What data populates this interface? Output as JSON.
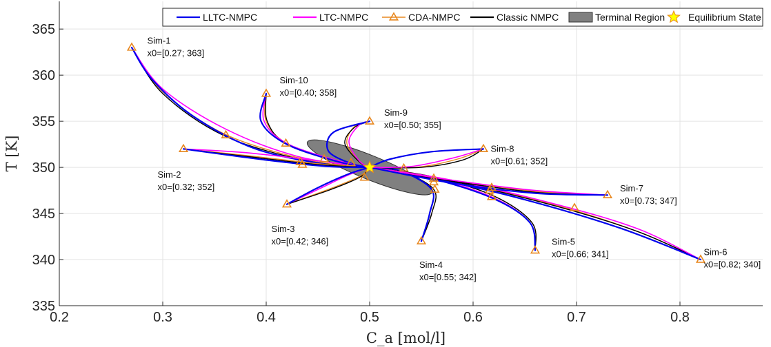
{
  "chart_data": {
    "type": "line",
    "xlabel": "C_a [mol/l]",
    "ylabel": "T [K]",
    "xlim": [
      0.2,
      0.88
    ],
    "ylim": [
      335,
      368
    ],
    "xticks": [
      "0.2",
      "0.3",
      "0.4",
      "0.5",
      "0.6",
      "0.7",
      "0.8"
    ],
    "yticks": [
      "335",
      "340",
      "345",
      "350",
      "355",
      "360",
      "365"
    ],
    "grid": true,
    "legend_placement": "top",
    "equilibrium": [
      0.5,
      350
    ],
    "terminal_region": {
      "center": [
        0.5,
        350
      ],
      "semi_axes": [
        0.065,
        1.3
      ],
      "angle_deg": -22
    },
    "legend": [
      {
        "label": "LLTC-NMPC",
        "kind": "line",
        "color": "#0000ee"
      },
      {
        "label": "LTC-NMPC",
        "kind": "line",
        "color": "#ff00ff"
      },
      {
        "label": "CDA-NMPC",
        "kind": "triangle-line",
        "color": "#e8871e"
      },
      {
        "label": "Classic NMPC",
        "kind": "line",
        "color": "#000000"
      },
      {
        "label": "Terminal Region",
        "kind": "patch",
        "color": "#808080"
      },
      {
        "label": "Equilibrium State",
        "kind": "star",
        "color": "#ffff00"
      }
    ],
    "series_colors": {
      "lltc": "#0000ee",
      "ltc": "#ff00ff",
      "cda": "#e8871e",
      "classic": "#000000"
    },
    "simulations": [
      {
        "name": "Sim-1",
        "label": "x0=[0.27; 363]",
        "x0": [
          0.27,
          363
        ],
        "label_pos": [
          0.285,
          363.4
        ],
        "lltc": [
          [
            0.27,
            363
          ],
          [
            0.29,
            359.5
          ],
          [
            0.33,
            355.5
          ],
          [
            0.39,
            352
          ],
          [
            0.46,
            350.3
          ],
          [
            0.5,
            350
          ]
        ],
        "ltc": [
          [
            0.27,
            363
          ],
          [
            0.3,
            358.5
          ],
          [
            0.36,
            354.2
          ],
          [
            0.43,
            351.2
          ],
          [
            0.5,
            350
          ]
        ],
        "cda": [
          [
            0.27,
            363
          ],
          [
            0.3,
            358.2
          ],
          [
            0.36,
            353.6
          ],
          [
            0.44,
            350.8
          ],
          [
            0.5,
            350
          ]
        ],
        "classic": [
          [
            0.27,
            363
          ],
          [
            0.3,
            358
          ],
          [
            0.36,
            353.4
          ],
          [
            0.44,
            350.7
          ],
          [
            0.5,
            350
          ]
        ],
        "cda_markers": [
          [
            0.27,
            363
          ],
          [
            0.361,
            353.5
          ],
          [
            0.433,
            350.6
          ]
        ]
      },
      {
        "name": "Sim-2",
        "label": "x0=[0.32; 352]",
        "x0": [
          0.32,
          352
        ],
        "label_pos": [
          0.295,
          348.9
        ],
        "lltc": [
          [
            0.32,
            352
          ],
          [
            0.4,
            350.8
          ],
          [
            0.46,
            350.1
          ],
          [
            0.5,
            350
          ]
        ],
        "ltc": [
          [
            0.32,
            352
          ],
          [
            0.38,
            351.6
          ],
          [
            0.45,
            350.7
          ],
          [
            0.5,
            350
          ]
        ],
        "cda": [
          [
            0.32,
            352
          ],
          [
            0.38,
            351.3
          ],
          [
            0.45,
            350.4
          ],
          [
            0.5,
            350
          ]
        ],
        "classic": [
          [
            0.32,
            352
          ],
          [
            0.38,
            351.2
          ],
          [
            0.45,
            350.3
          ],
          [
            0.5,
            350
          ]
        ],
        "cda_markers": [
          [
            0.32,
            352
          ],
          [
            0.435,
            350.3
          ]
        ]
      },
      {
        "name": "Sim-3",
        "label": "x0=[0.42; 346]",
        "x0": [
          0.42,
          346
        ],
        "label_pos": [
          0.405,
          343
        ],
        "lltc": [
          [
            0.42,
            346
          ],
          [
            0.45,
            347.8
          ],
          [
            0.48,
            349.3
          ],
          [
            0.5,
            350
          ]
        ],
        "ltc": [
          [
            0.42,
            346
          ],
          [
            0.45,
            347.6
          ],
          [
            0.48,
            349.2
          ],
          [
            0.5,
            350
          ]
        ],
        "cda": [
          [
            0.42,
            346
          ],
          [
            0.46,
            347.6
          ],
          [
            0.49,
            349
          ],
          [
            0.5,
            350
          ]
        ],
        "classic": [
          [
            0.42,
            346
          ],
          [
            0.46,
            347.5
          ],
          [
            0.49,
            348.9
          ],
          [
            0.5,
            350
          ]
        ],
        "cda_markers": [
          [
            0.42,
            346
          ],
          [
            0.495,
            348.9
          ]
        ]
      },
      {
        "name": "Sim-4",
        "label": "x0=[0.55; 342]",
        "x0": [
          0.55,
          342
        ],
        "label_pos": [
          0.548,
          339.1
        ],
        "lltc": [
          [
            0.55,
            342
          ],
          [
            0.558,
            345
          ],
          [
            0.56,
            347.6
          ],
          [
            0.53,
            349.6
          ],
          [
            0.5,
            350
          ]
        ],
        "ltc": [
          [
            0.55,
            342
          ],
          [
            0.558,
            345
          ],
          [
            0.56,
            347.6
          ],
          [
            0.53,
            349.6
          ],
          [
            0.5,
            350
          ]
        ],
        "cda": [
          [
            0.55,
            342
          ],
          [
            0.56,
            345
          ],
          [
            0.562,
            347.6
          ],
          [
            0.53,
            349.6
          ],
          [
            0.5,
            350
          ]
        ],
        "classic": [
          [
            0.55,
            342
          ],
          [
            0.56,
            345
          ],
          [
            0.562,
            347.6
          ],
          [
            0.53,
            349.6
          ],
          [
            0.5,
            350
          ]
        ],
        "cda_markers": [
          [
            0.55,
            342
          ],
          [
            0.563,
            347.6
          ],
          [
            0.562,
            348.4
          ]
        ]
      },
      {
        "name": "Sim-5",
        "label": "x0=[0.66; 341]",
        "x0": [
          0.66,
          341
        ],
        "label_pos": [
          0.676,
          341.6
        ],
        "lltc": [
          [
            0.66,
            341
          ],
          [
            0.655,
            344
          ],
          [
            0.62,
            346.6
          ],
          [
            0.56,
            348.8
          ],
          [
            0.5,
            350
          ]
        ],
        "ltc": [
          [
            0.66,
            341
          ],
          [
            0.655,
            344
          ],
          [
            0.62,
            346.7
          ],
          [
            0.56,
            348.9
          ],
          [
            0.5,
            350
          ]
        ],
        "cda": [
          [
            0.66,
            341
          ],
          [
            0.657,
            344
          ],
          [
            0.62,
            346.9
          ],
          [
            0.56,
            349
          ],
          [
            0.5,
            350
          ]
        ],
        "classic": [
          [
            0.66,
            341
          ],
          [
            0.657,
            344
          ],
          [
            0.62,
            346.9
          ],
          [
            0.56,
            349
          ],
          [
            0.5,
            350
          ]
        ],
        "cda_markers": [
          [
            0.66,
            341
          ],
          [
            0.618,
            346.8
          ]
        ]
      },
      {
        "name": "Sim-6",
        "label": "x0=[0.82; 340]",
        "x0": [
          0.82,
          340
        ],
        "label_pos": [
          0.823,
          340.5
        ],
        "lltc": [
          [
            0.82,
            340
          ],
          [
            0.74,
            343.5
          ],
          [
            0.64,
            346.8
          ],
          [
            0.56,
            348.8
          ],
          [
            0.5,
            350
          ]
        ],
        "ltc": [
          [
            0.82,
            340
          ],
          [
            0.76,
            343.3
          ],
          [
            0.68,
            346
          ],
          [
            0.58,
            348.6
          ],
          [
            0.5,
            350
          ]
        ],
        "cda": [
          [
            0.82,
            340
          ],
          [
            0.76,
            343
          ],
          [
            0.68,
            345.9
          ],
          [
            0.58,
            348.5
          ],
          [
            0.5,
            350
          ]
        ],
        "classic": [
          [
            0.82,
            340
          ],
          [
            0.76,
            343
          ],
          [
            0.68,
            345.8
          ],
          [
            0.58,
            348.5
          ],
          [
            0.5,
            350
          ]
        ],
        "cda_markers": [
          [
            0.82,
            340
          ],
          [
            0.698,
            345.6
          ],
          [
            0.616,
            347.5
          ]
        ]
      },
      {
        "name": "Sim-7",
        "label": "x0=[0.73; 347]",
        "x0": [
          0.73,
          347
        ],
        "label_pos": [
          0.742,
          347.4
        ],
        "lltc": [
          [
            0.73,
            347
          ],
          [
            0.66,
            347.2
          ],
          [
            0.58,
            348.3
          ],
          [
            0.5,
            350
          ]
        ],
        "ltc": [
          [
            0.73,
            347
          ],
          [
            0.66,
            347.5
          ],
          [
            0.58,
            348.6
          ],
          [
            0.5,
            350
          ]
        ],
        "cda": [
          [
            0.73,
            347
          ],
          [
            0.66,
            347.4
          ],
          [
            0.58,
            348.6
          ],
          [
            0.5,
            350
          ]
        ],
        "classic": [
          [
            0.73,
            347
          ],
          [
            0.66,
            347.3
          ],
          [
            0.58,
            348.5
          ],
          [
            0.5,
            350
          ]
        ],
        "cda_markers": [
          [
            0.73,
            347
          ],
          [
            0.618,
            347.8
          ],
          [
            0.562,
            348.8
          ]
        ]
      },
      {
        "name": "Sim-8",
        "label": "x0=[0.61; 352]",
        "x0": [
          0.61,
          352
        ],
        "label_pos": [
          0.617,
          351.7
        ],
        "lltc": [
          [
            0.61,
            352
          ],
          [
            0.56,
            351.7
          ],
          [
            0.52,
            350.9
          ],
          [
            0.5,
            350
          ]
        ],
        "ltc": [
          [
            0.61,
            352
          ],
          [
            0.58,
            351
          ],
          [
            0.54,
            350.1
          ],
          [
            0.5,
            350
          ]
        ],
        "cda": [
          [
            0.61,
            352
          ],
          [
            0.585,
            350.9
          ],
          [
            0.545,
            350
          ],
          [
            0.5,
            350
          ]
        ],
        "classic": [
          [
            0.61,
            352
          ],
          [
            0.59,
            350.8
          ],
          [
            0.55,
            350
          ],
          [
            0.5,
            350
          ]
        ],
        "cda_markers": [
          [
            0.61,
            352
          ],
          [
            0.533,
            349.9
          ]
        ]
      },
      {
        "name": "Sim-9",
        "label": "x0=[0.50; 355]",
        "x0": [
          0.5,
          355
        ],
        "label_pos": [
          0.514,
          355.6
        ],
        "lltc": [
          [
            0.5,
            355
          ],
          [
            0.465,
            353.8
          ],
          [
            0.46,
            351.8
          ],
          [
            0.48,
            350.5
          ],
          [
            0.5,
            350
          ]
        ],
        "ltc": [
          [
            0.5,
            355
          ],
          [
            0.49,
            354.6
          ],
          [
            0.48,
            352.8
          ],
          [
            0.49,
            350.7
          ],
          [
            0.5,
            350
          ]
        ],
        "cda": [
          [
            0.5,
            355
          ],
          [
            0.485,
            354.4
          ],
          [
            0.478,
            352.6
          ],
          [
            0.49,
            350.6
          ],
          [
            0.5,
            350
          ]
        ],
        "classic": [
          [
            0.5,
            355
          ],
          [
            0.485,
            354.3
          ],
          [
            0.476,
            352.6
          ],
          [
            0.49,
            350.6
          ],
          [
            0.5,
            350
          ]
        ],
        "cda_markers": [
          [
            0.5,
            355
          ]
        ]
      },
      {
        "name": "Sim-10",
        "label": "x0=[0.40; 358]",
        "x0": [
          0.4,
          358
        ],
        "label_pos": [
          0.413,
          359.1
        ],
        "lltc": [
          [
            0.4,
            358
          ],
          [
            0.395,
            355
          ],
          [
            0.42,
            352.5
          ],
          [
            0.47,
            350.6
          ],
          [
            0.5,
            350
          ]
        ],
        "ltc": [
          [
            0.4,
            358
          ],
          [
            0.398,
            355
          ],
          [
            0.42,
            352.6
          ],
          [
            0.47,
            350.7
          ],
          [
            0.5,
            350
          ]
        ],
        "cda": [
          [
            0.4,
            358
          ],
          [
            0.4,
            355
          ],
          [
            0.42,
            352.6
          ],
          [
            0.47,
            350.6
          ],
          [
            0.5,
            350
          ]
        ],
        "classic": [
          [
            0.4,
            358
          ],
          [
            0.401,
            355
          ],
          [
            0.42,
            352.5
          ],
          [
            0.47,
            350.6
          ],
          [
            0.5,
            350
          ]
        ],
        "cda_markers": [
          [
            0.4,
            358
          ],
          [
            0.419,
            352.6
          ],
          [
            0.456,
            350.9
          ],
          [
            0.482,
            350.5
          ]
        ]
      }
    ]
  }
}
